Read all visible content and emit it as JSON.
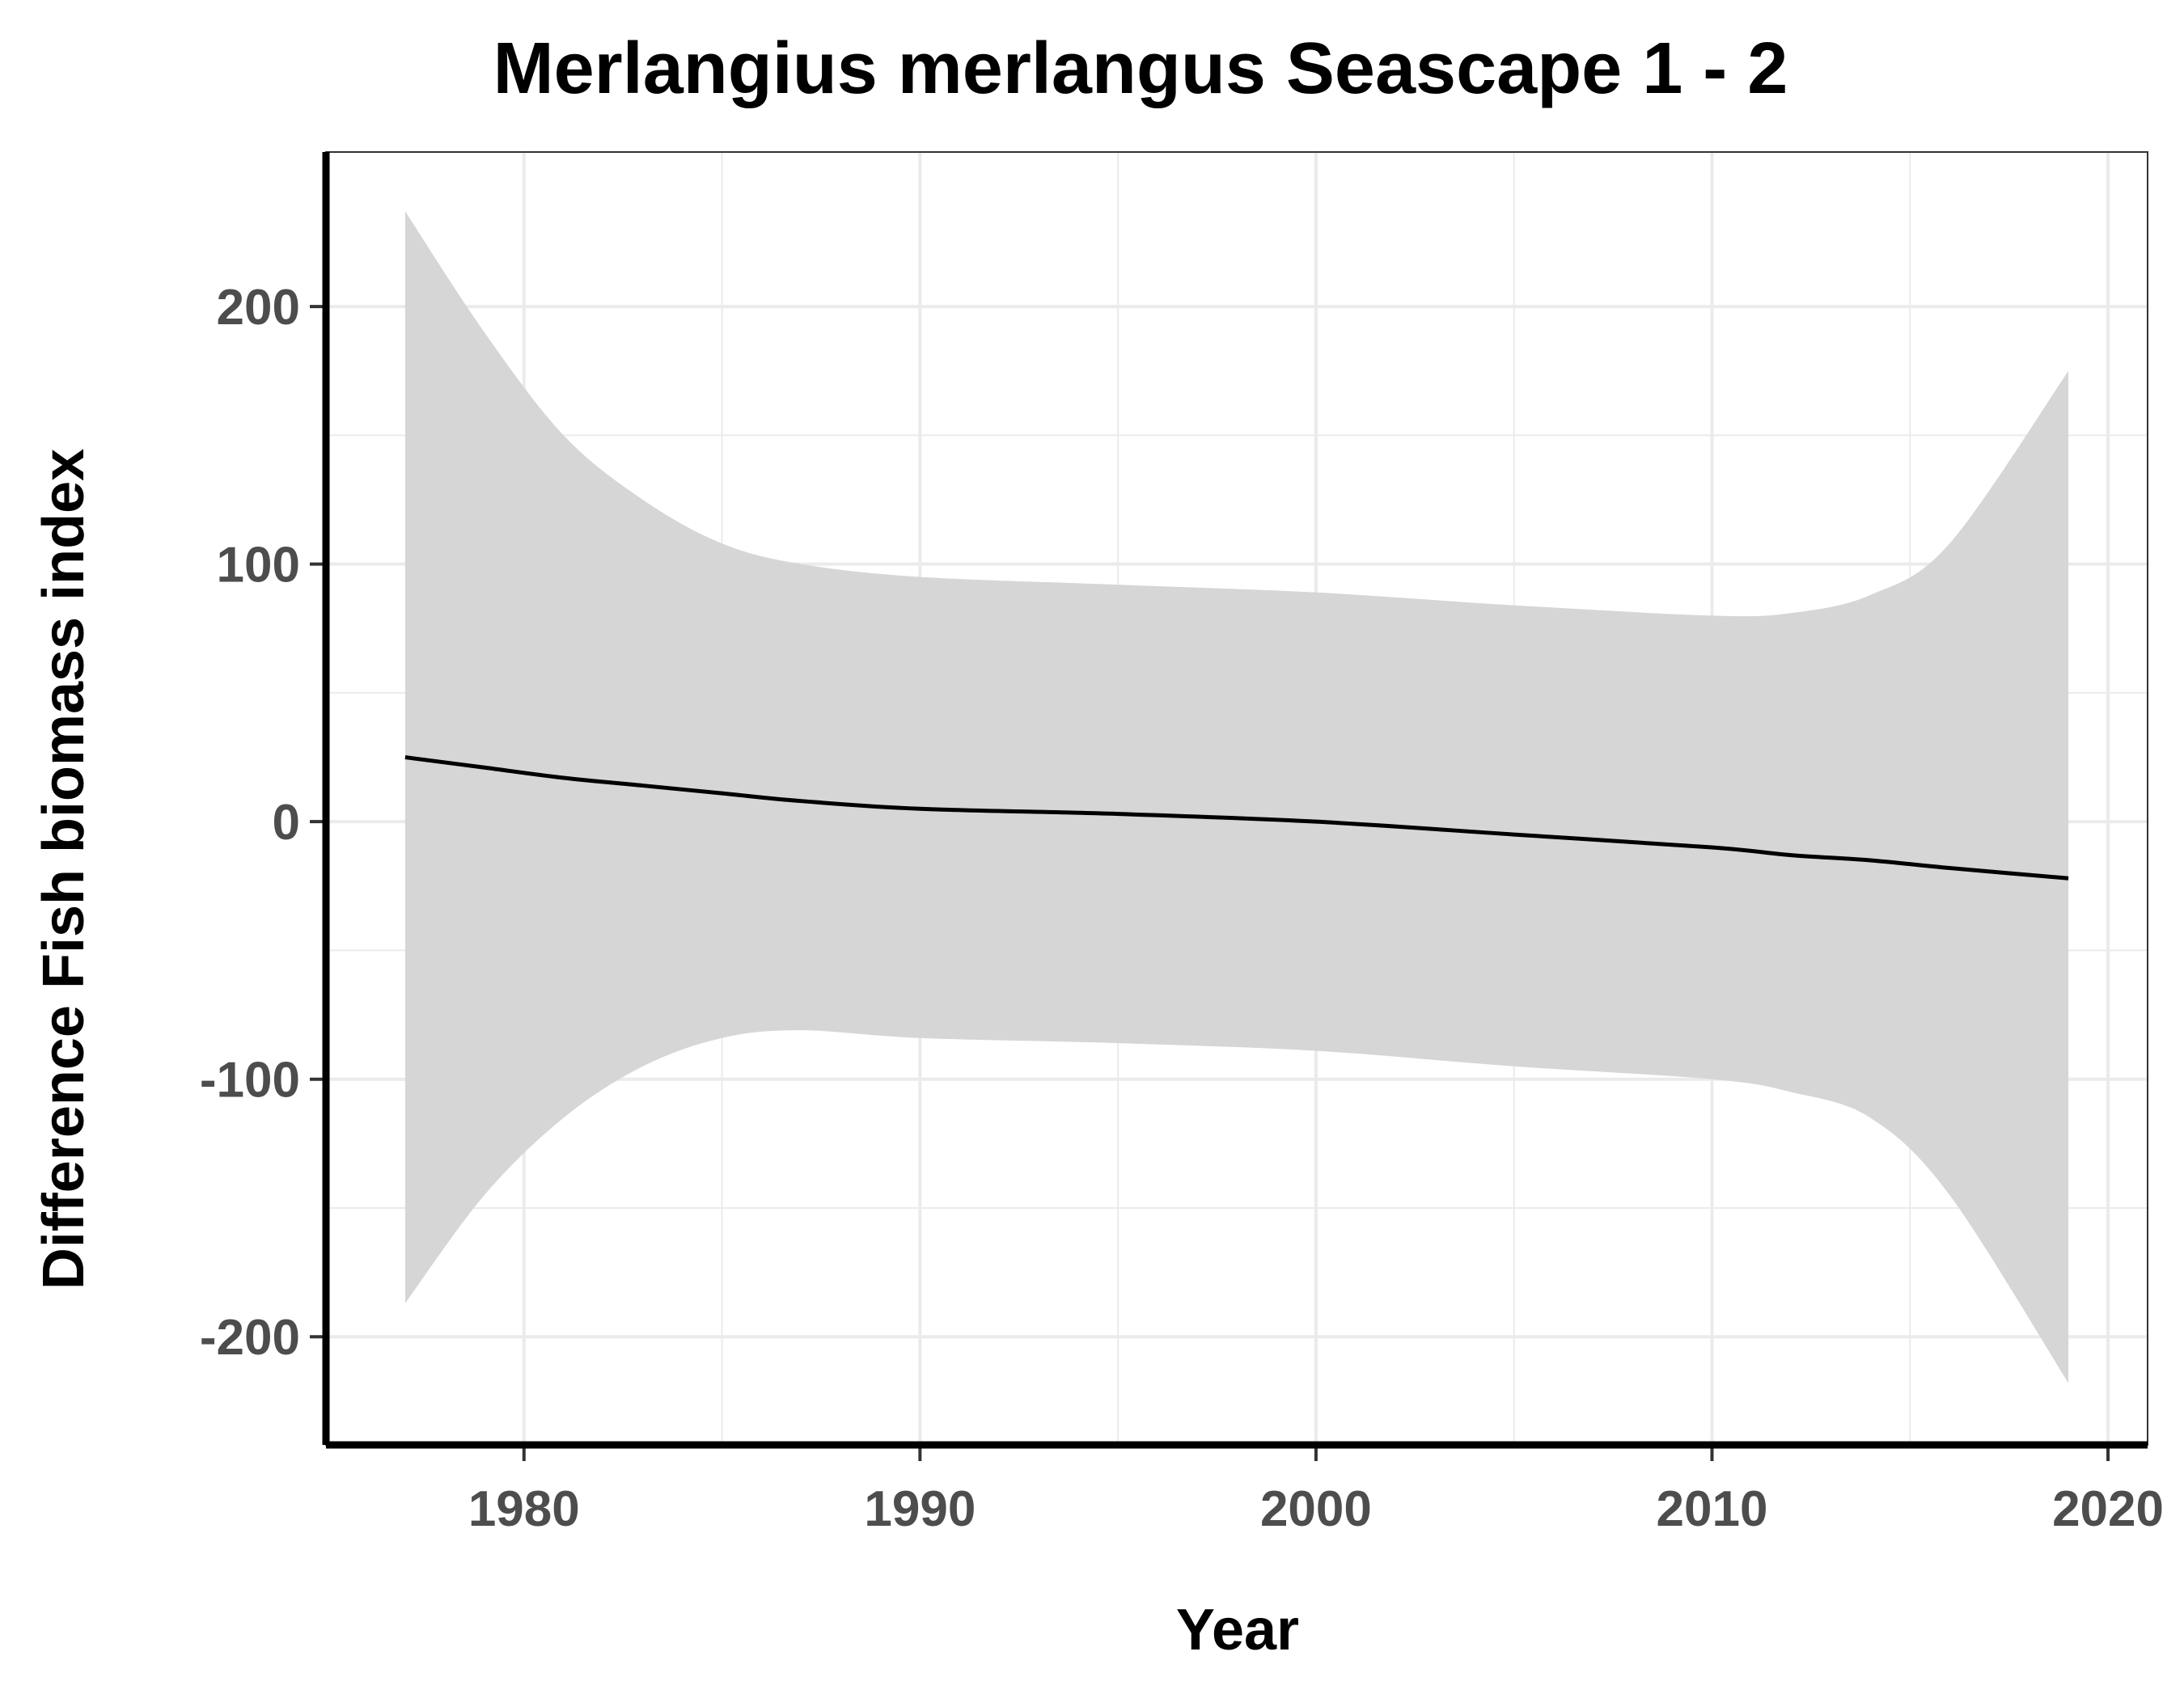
{
  "chart_data": {
    "type": "line",
    "title": "Merlangius merlangus Seascape 1 - 2",
    "xlabel": "Year",
    "ylabel": "Difference Fish biomass index",
    "xlim": [
      1975,
      2021
    ],
    "ylim": [
      -242,
      260
    ],
    "x_ticks": [
      1980,
      1990,
      2000,
      2010,
      2020
    ],
    "x_tick_labels": [
      "1980",
      "1990",
      "2000",
      "2010",
      "2020"
    ],
    "x_minor_ticks": [
      1985,
      1995,
      2005,
      2015
    ],
    "y_ticks": [
      -200,
      -100,
      0,
      100,
      200
    ],
    "y_tick_labels": [
      "-200",
      "-100",
      "0",
      "100",
      "200"
    ],
    "y_minor_ticks": [
      -150,
      -50,
      50,
      150
    ],
    "grid": true,
    "legend": "none",
    "colors": {
      "line": "#000000",
      "ribbon": "#d6d6d6",
      "grid": "#ebebeb",
      "axis": "#000000"
    },
    "series": [
      {
        "x": [
          1977,
          1979,
          1981,
          1983,
          1985,
          1987,
          1990,
          1995,
          2000,
          2005,
          2010,
          2012,
          2014,
          2016,
          2019
        ],
        "y": [
          25,
          21,
          17,
          14,
          11,
          8,
          5,
          3,
          0,
          -5,
          -10,
          -13,
          -15,
          -18,
          -22
        ],
        "upper": [
          237,
          190,
          150,
          125,
          108,
          100,
          95,
          92,
          89,
          84,
          80,
          81,
          88,
          108,
          175
        ],
        "lower": [
          -187,
          -145,
          -115,
          -95,
          -84,
          -81,
          -84,
          -86,
          -89,
          -95,
          -100,
          -105,
          -115,
          -145,
          -218
        ]
      }
    ]
  }
}
